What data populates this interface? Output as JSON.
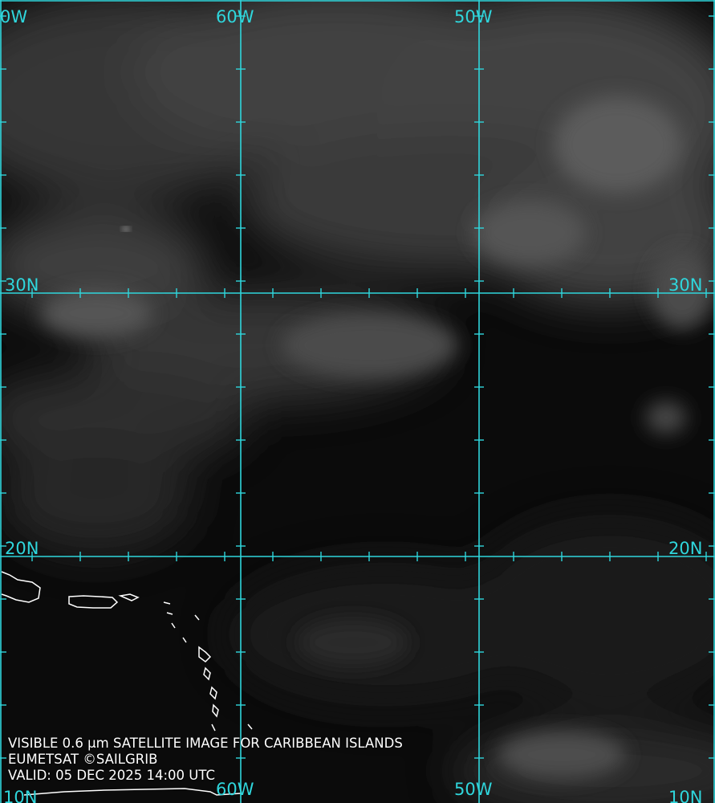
{
  "map": {
    "grid_color": "#2fd6dc",
    "background_color": "#0b0b0b",
    "coastline_color": "#ffffff",
    "labels": {
      "top": [
        "0W",
        "60W",
        "50W"
      ],
      "left": [
        "30N",
        "20N"
      ],
      "right": [
        "30N",
        "20N",
        "10N"
      ],
      "bottom": [
        "10N",
        "60W",
        "50W"
      ]
    }
  },
  "caption": {
    "line1": "VISIBLE 0.6 µm SATELLITE IMAGE FOR CARIBBEAN ISLANDS",
    "line2": "EUMETSAT ©SAILGRIB",
    "line3": "VALID:  05 DEC 2025 14:00 UTC"
  }
}
